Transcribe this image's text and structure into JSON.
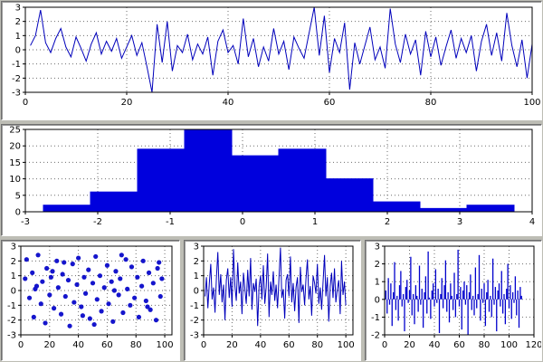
{
  "window": {
    "background_color": "#bdbdb5",
    "panel_background": "#ffffff",
    "accent_color": "#0000cc"
  },
  "chart_data": [
    {
      "type": "line",
      "name": "top-noise-line",
      "series_color": "#0000bb",
      "xlim": [
        0,
        100
      ],
      "ylim": [
        -3,
        3
      ],
      "xticks": [
        0,
        20,
        40,
        60,
        80,
        100
      ],
      "yticks": [
        -3,
        -2,
        -1,
        0,
        1,
        2,
        3
      ],
      "grid": true,
      "y": [
        0.3,
        1.0,
        2.8,
        0.5,
        -0.2,
        0.8,
        1.5,
        0.2,
        -0.5,
        0.9,
        0.1,
        -0.8,
        0.4,
        1.2,
        -0.3,
        0.6,
        -0.1,
        0.8,
        -0.6,
        0.2,
        1.0,
        -0.4,
        0.5,
        -1.2,
        -3.2,
        1.8,
        -0.9,
        2.0,
        -1.5,
        0.3,
        -0.2,
        1.1,
        -0.7,
        0.4,
        -0.3,
        0.9,
        -1.8,
        0.6,
        1.4,
        -0.2,
        0.3,
        -1.0,
        2.2,
        -0.5,
        0.8,
        -1.2,
        0.2,
        -0.8,
        1.5,
        -0.3,
        0.6,
        -1.4,
        0.9,
        0.1,
        -0.6,
        1.2,
        3.0,
        -0.4,
        2.4,
        -1.6,
        0.8,
        -0.2,
        1.9,
        -2.8,
        0.5,
        -1.0,
        0.3,
        1.6,
        -0.7,
        0.2,
        -1.3,
        2.9,
        0.4,
        -0.9,
        1.1,
        -0.3,
        0.7,
        -1.8,
        1.3,
        -0.5,
        0.9,
        -1.1,
        0.2,
        1.4,
        -0.6,
        0.8,
        -0.2,
        1.0,
        -1.5,
        0.6,
        1.8,
        -0.4,
        1.2,
        -0.8,
        2.6,
        0.3,
        -1.2,
        0.7,
        -2.0,
        0.4
      ]
    },
    {
      "type": "histogram",
      "name": "histogram",
      "series_color": "#0000dd",
      "xlim": [
        -3,
        4
      ],
      "ylim": [
        0,
        25
      ],
      "xticks": [
        -3,
        -2,
        -1,
        0,
        1,
        2,
        3,
        4
      ],
      "yticks": [
        0,
        5,
        10,
        15,
        20,
        25
      ],
      "grid": true,
      "bin_edges": [
        -2.75,
        -2.1,
        -1.45,
        -0.8,
        -0.15,
        0.5,
        1.15,
        1.8,
        2.45,
        3.1,
        3.75
      ],
      "counts": [
        2,
        6,
        19,
        25,
        17,
        19,
        10,
        3,
        1,
        2
      ]
    },
    {
      "type": "scatter",
      "name": "scatter-noise",
      "series_color": "#1515cc",
      "xlim": [
        0,
        105
      ],
      "ylim": [
        -3,
        3
      ],
      "xticks": [
        0,
        20,
        40,
        60,
        80,
        100
      ],
      "yticks": [
        -3,
        -2,
        -1,
        0,
        1,
        2,
        3
      ],
      "grid": true,
      "x": [
        3,
        4,
        6,
        8,
        9,
        11,
        12,
        14,
        15,
        17,
        18,
        20,
        21,
        23,
        25,
        26,
        28,
        29,
        31,
        33,
        34,
        36,
        37,
        39,
        40,
        42,
        44,
        45,
        47,
        48,
        50,
        52,
        53,
        55,
        56,
        58,
        60,
        61,
        63,
        64,
        66,
        68,
        69,
        71,
        73,
        74,
        76,
        77,
        79,
        81,
        82,
        84,
        85,
        87,
        89,
        90,
        92,
        94,
        95,
        97,
        98,
        10,
        30,
        51,
        70,
        88,
        22,
        43,
        65,
        96
      ],
      "y": [
        0.8,
        2.1,
        -0.5,
        1.2,
        -1.8,
        0.3,
        2.4,
        -0.9,
        0.6,
        -2.2,
        1.5,
        -0.3,
        0.9,
        -1.2,
        2.0,
        0.2,
        -1.6,
        1.1,
        -0.4,
        0.7,
        -2.4,
        1.8,
        -0.8,
        0.4,
        2.2,
        -1.1,
        0.9,
        -0.2,
        1.4,
        -1.9,
        0.5,
        2.3,
        -0.6,
        1.0,
        -1.4,
        0.2,
        1.7,
        -0.9,
        0.6,
        -2.1,
        1.3,
        -0.3,
        0.8,
        -1.5,
        2.1,
        0.1,
        -1.0,
        1.6,
        -0.5,
        0.9,
        -1.8,
        0.3,
        2.0,
        -0.7,
        1.2,
        -1.3,
        0.5,
        -2.0,
        1.5,
        -0.4,
        0.8,
        0.1,
        1.9,
        -2.3,
        2.4,
        -1.1,
        1.3,
        -1.7,
        0.0,
        1.9
      ]
    },
    {
      "type": "line",
      "name": "bottom-noise-line",
      "series_color": "#0000bb",
      "xlim": [
        0,
        105
      ],
      "ylim": [
        -3,
        3
      ],
      "xticks": [
        0,
        20,
        40,
        60,
        80,
        100
      ],
      "yticks": [
        -3,
        -2,
        -1,
        0,
        1,
        2,
        3
      ],
      "grid": true,
      "y": [
        -0.4,
        0.9,
        -1.2,
        0.5,
        1.8,
        -0.6,
        0.2,
        -1.5,
        0.8,
        2.6,
        -0.3,
        1.1,
        -0.8,
        0.4,
        -2.0,
        0.7,
        1.5,
        -0.5,
        0.9,
        -1.1,
        2.8,
        0.3,
        -0.7,
        1.9,
        -0.2,
        0.6,
        -1.6,
        1.2,
        0.1,
        -0.9,
        1.4,
        -0.4,
        2.2,
        -1.3,
        0.5,
        -0.1,
        0.8,
        -2.4,
        0.3,
        1.0,
        -0.6,
        1.7,
        -0.9,
        0.2,
        2.5,
        -1.8,
        0.6,
        -0.3,
        1.3,
        -0.7,
        0.4,
        -1.2,
        0.9,
        2.9,
        -0.5,
        0.1,
        -1.9,
        0.7,
        1.1,
        -0.4,
        2.3,
        -0.8,
        0.5,
        -1.4,
        0.2,
        0.9,
        -2.2,
        1.6,
        -0.1,
        0.4,
        -1.0,
        0.8,
        2.1,
        -0.6,
        0.3,
        -1.7,
        1.0,
        0.5,
        -0.2,
        1.8,
        -0.9,
        0.2,
        -1.3,
        0.6,
        2.4,
        -0.4,
        0.9,
        -2.1,
        0.3,
        1.2,
        -0.5,
        1.5,
        -0.8,
        0.1,
        0.7,
        -1.6,
        2.0,
        -0.3,
        0.6,
        -1.0
      ]
    },
    {
      "type": "stem",
      "name": "stem-noise",
      "series_color": "#0000cc",
      "xlim": [
        0,
        120
      ],
      "ylim": [
        -2,
        3
      ],
      "xticks": [
        0,
        20,
        40,
        60,
        80,
        100,
        120
      ],
      "yticks": [
        -2,
        -1,
        0,
        1,
        2,
        3
      ],
      "grid": true,
      "y": [
        0.5,
        -0.8,
        1.2,
        -0.3,
        0.9,
        -1.5,
        0.4,
        2.1,
        -0.6,
        0.2,
        -1.2,
        0.8,
        1.6,
        -0.4,
        0.3,
        -1.8,
        0.7,
        1.1,
        -0.2,
        0.5,
        2.4,
        -0.9,
        0.3,
        -1.4,
        0.8,
        0.2,
        -0.7,
        1.9,
        -0.3,
        0.6,
        -1.6,
        0.4,
        1.3,
        -0.8,
        2.7,
        0.1,
        -1.1,
        0.5,
        0.9,
        -0.4,
        1.7,
        -0.2,
        0.6,
        -1.9,
        0.3,
        1.2,
        -0.5,
        0.8,
        2.2,
        -0.7,
        0.4,
        -1.3,
        0.9,
        0.2,
        -0.6,
        1.5,
        -1.0,
        0.3,
        2.8,
        -0.4,
        0.7,
        -1.7,
        0.5,
        1.0,
        -0.3,
        0.8,
        -2.0,
        0.4,
        1.4,
        -0.6,
        0.2,
        -0.9,
        1.8,
        -0.5,
        0.3,
        2.5,
        -1.2,
        0.6,
        -0.2,
        0.9,
        -1.5,
        0.4,
        1.1,
        -0.7,
        0.2,
        -1.0,
        2.3,
        -0.3,
        0.7,
        -1.8,
        0.5,
        0.9,
        -0.4,
        1.6,
        -0.8,
        0.3,
        -1.4,
        0.6,
        2.0,
        -0.5,
        0.8,
        -1.1,
        0.4,
        -0.2,
        1.3,
        -0.9,
        0.5,
        -1.6,
        0.7,
        0.2
      ]
    }
  ]
}
